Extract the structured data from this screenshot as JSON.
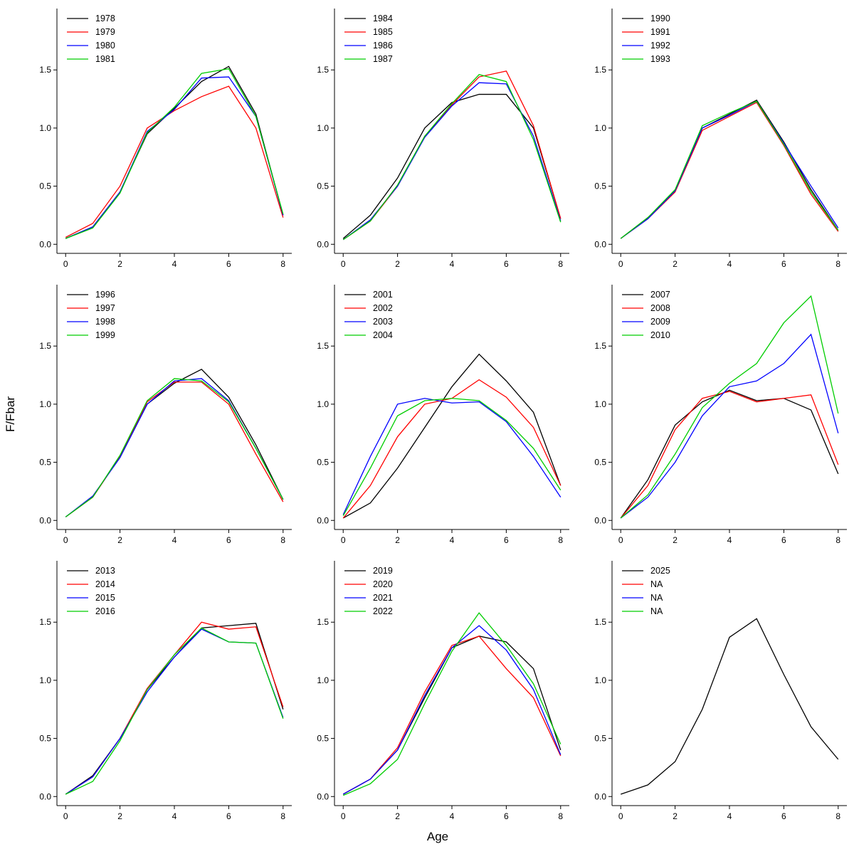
{
  "figure": {
    "xlabel": "Age",
    "ylabel": "F/Fbar"
  },
  "axes": {
    "xlim": [
      0,
      8
    ],
    "ylim": [
      0,
      1.95
    ],
    "x_ticks": [
      0,
      2,
      4,
      6,
      8
    ],
    "x_tick_labels": [
      "0",
      "2",
      "4",
      "6",
      "8"
    ],
    "y_ticks": [
      0,
      0.5,
      1.0,
      1.5
    ],
    "y_tick_labels": [
      "0.0",
      "0.5",
      "1.0",
      "1.5"
    ],
    "grid": false,
    "legend_position": "top-left"
  },
  "colors": {
    "black": "#000000",
    "red": "#ff0000",
    "blue": "#0000ff",
    "green": "#00cd00"
  },
  "chart_data": [
    {
      "type": "line",
      "x": [
        0,
        1,
        2,
        3,
        4,
        5,
        6,
        7,
        8
      ],
      "series": [
        {
          "name": "1978",
          "color": "#000000",
          "values": [
            0.05,
            0.15,
            0.45,
            0.95,
            1.17,
            1.4,
            1.53,
            1.12,
            0.25
          ]
        },
        {
          "name": "1979",
          "color": "#ff0000",
          "values": [
            0.06,
            0.18,
            0.5,
            1.0,
            1.15,
            1.27,
            1.36,
            1.0,
            0.23
          ]
        },
        {
          "name": "1980",
          "color": "#0000ff",
          "values": [
            0.05,
            0.15,
            0.45,
            0.97,
            1.16,
            1.43,
            1.44,
            1.1,
            0.25
          ]
        },
        {
          "name": "1981",
          "color": "#00cd00",
          "values": [
            0.05,
            0.14,
            0.44,
            0.96,
            1.18,
            1.47,
            1.51,
            1.1,
            0.26
          ]
        }
      ]
    },
    {
      "type": "line",
      "x": [
        0,
        1,
        2,
        3,
        4,
        5,
        6,
        7,
        8
      ],
      "series": [
        {
          "name": "1984",
          "color": "#000000",
          "values": [
            0.05,
            0.25,
            0.57,
            1.0,
            1.22,
            1.29,
            1.29,
            1.0,
            0.22
          ]
        },
        {
          "name": "1985",
          "color": "#ff0000",
          "values": [
            0.04,
            0.2,
            0.5,
            0.93,
            1.2,
            1.44,
            1.49,
            1.02,
            0.22
          ]
        },
        {
          "name": "1986",
          "color": "#0000ff",
          "values": [
            0.04,
            0.21,
            0.5,
            0.92,
            1.19,
            1.39,
            1.38,
            0.93,
            0.2
          ]
        },
        {
          "name": "1987",
          "color": "#00cd00",
          "values": [
            0.04,
            0.2,
            0.51,
            0.93,
            1.21,
            1.46,
            1.4,
            0.9,
            0.19
          ]
        }
      ]
    },
    {
      "type": "line",
      "x": [
        0,
        1,
        2,
        3,
        4,
        5,
        6,
        7,
        8
      ],
      "series": [
        {
          "name": "1990",
          "color": "#000000",
          "values": [
            0.05,
            0.23,
            0.46,
            1.0,
            1.12,
            1.24,
            0.88,
            0.47,
            0.12
          ]
        },
        {
          "name": "1991",
          "color": "#ff0000",
          "values": [
            0.05,
            0.22,
            0.45,
            0.98,
            1.1,
            1.22,
            0.85,
            0.43,
            0.11
          ]
        },
        {
          "name": "1992",
          "color": "#0000ff",
          "values": [
            0.05,
            0.22,
            0.46,
            1.0,
            1.11,
            1.23,
            0.87,
            0.5,
            0.14
          ]
        },
        {
          "name": "1993",
          "color": "#00cd00",
          "values": [
            0.05,
            0.23,
            0.47,
            1.02,
            1.13,
            1.23,
            0.86,
            0.45,
            0.12
          ]
        }
      ]
    },
    {
      "type": "line",
      "x": [
        0,
        1,
        2,
        3,
        4,
        5,
        6,
        7,
        8
      ],
      "series": [
        {
          "name": "1996",
          "color": "#000000",
          "values": [
            0.03,
            0.2,
            0.55,
            1.0,
            1.18,
            1.3,
            1.06,
            0.65,
            0.18
          ]
        },
        {
          "name": "1997",
          "color": "#ff0000",
          "values": [
            0.03,
            0.2,
            0.55,
            1.02,
            1.19,
            1.19,
            1.0,
            0.57,
            0.16
          ]
        },
        {
          "name": "1998",
          "color": "#0000ff",
          "values": [
            0.03,
            0.21,
            0.54,
            1.0,
            1.2,
            1.22,
            1.03,
            0.62,
            0.18
          ]
        },
        {
          "name": "1999",
          "color": "#00cd00",
          "values": [
            0.03,
            0.2,
            0.56,
            1.03,
            1.22,
            1.2,
            1.02,
            0.62,
            0.18
          ]
        }
      ]
    },
    {
      "type": "line",
      "x": [
        0,
        1,
        2,
        3,
        4,
        5,
        6,
        7,
        8
      ],
      "series": [
        {
          "name": "2001",
          "color": "#000000",
          "values": [
            0.02,
            0.15,
            0.45,
            0.8,
            1.15,
            1.43,
            1.2,
            0.93,
            0.3
          ]
        },
        {
          "name": "2002",
          "color": "#ff0000",
          "values": [
            0.02,
            0.3,
            0.72,
            1.0,
            1.05,
            1.21,
            1.06,
            0.8,
            0.3
          ]
        },
        {
          "name": "2003",
          "color": "#0000ff",
          "values": [
            0.05,
            0.55,
            1.0,
            1.05,
            1.01,
            1.02,
            0.85,
            0.55,
            0.2
          ]
        },
        {
          "name": "2004",
          "color": "#00cd00",
          "values": [
            0.04,
            0.45,
            0.9,
            1.03,
            1.05,
            1.03,
            0.86,
            0.62,
            0.26
          ]
        }
      ]
    },
    {
      "type": "line",
      "x": [
        0,
        1,
        2,
        3,
        4,
        5,
        6,
        7,
        8
      ],
      "series": [
        {
          "name": "2007",
          "color": "#000000",
          "values": [
            0.02,
            0.35,
            0.82,
            1.02,
            1.12,
            1.03,
            1.05,
            0.95,
            0.4
          ]
        },
        {
          "name": "2008",
          "color": "#ff0000",
          "values": [
            0.02,
            0.3,
            0.78,
            1.05,
            1.11,
            1.02,
            1.05,
            1.08,
            0.48
          ]
        },
        {
          "name": "2009",
          "color": "#0000ff",
          "values": [
            0.02,
            0.2,
            0.5,
            0.9,
            1.15,
            1.2,
            1.35,
            1.6,
            0.75
          ]
        },
        {
          "name": "2010",
          "color": "#00cd00",
          "values": [
            0.02,
            0.22,
            0.57,
            0.97,
            1.18,
            1.35,
            1.7,
            1.93,
            0.92
          ]
        }
      ]
    },
    {
      "type": "line",
      "x": [
        0,
        1,
        2,
        3,
        4,
        5,
        6,
        7,
        8
      ],
      "series": [
        {
          "name": "2013",
          "color": "#000000",
          "values": [
            0.02,
            0.18,
            0.5,
            0.92,
            1.2,
            1.45,
            1.47,
            1.49,
            0.75
          ]
        },
        {
          "name": "2014",
          "color": "#ff0000",
          "values": [
            0.02,
            0.17,
            0.5,
            0.93,
            1.22,
            1.5,
            1.44,
            1.46,
            0.77
          ]
        },
        {
          "name": "2015",
          "color": "#0000ff",
          "values": [
            0.02,
            0.17,
            0.5,
            0.9,
            1.2,
            1.44,
            1.33,
            1.32,
            0.68
          ]
        },
        {
          "name": "2016",
          "color": "#00cd00",
          "values": [
            0.02,
            0.13,
            0.48,
            0.92,
            1.22,
            1.45,
            1.33,
            1.32,
            0.67
          ]
        }
      ]
    },
    {
      "type": "line",
      "x": [
        0,
        1,
        2,
        3,
        4,
        5,
        6,
        7,
        8
      ],
      "series": [
        {
          "name": "2019",
          "color": "#000000",
          "values": [
            0.02,
            0.15,
            0.4,
            0.85,
            1.28,
            1.38,
            1.33,
            1.1,
            0.4
          ]
        },
        {
          "name": "2020",
          "color": "#ff0000",
          "values": [
            0.02,
            0.15,
            0.42,
            0.9,
            1.3,
            1.38,
            1.1,
            0.85,
            0.35
          ]
        },
        {
          "name": "2021",
          "color": "#0000ff",
          "values": [
            0.02,
            0.15,
            0.4,
            0.87,
            1.28,
            1.47,
            1.26,
            0.92,
            0.36
          ]
        },
        {
          "name": "2022",
          "color": "#00cd00",
          "values": [
            0.01,
            0.11,
            0.32,
            0.8,
            1.25,
            1.58,
            1.3,
            0.97,
            0.45
          ]
        }
      ]
    },
    {
      "type": "line",
      "x": [
        0,
        1,
        2,
        3,
        4,
        5,
        6,
        7,
        8
      ],
      "series": [
        {
          "name": "2025",
          "color": "#000000",
          "values": [
            0.02,
            0.1,
            0.3,
            0.75,
            1.37,
            1.53,
            1.05,
            0.6,
            0.32
          ]
        },
        {
          "name": "NA",
          "color": "#ff0000",
          "values": null
        },
        {
          "name": "NA",
          "color": "#0000ff",
          "values": null
        },
        {
          "name": "NA",
          "color": "#00cd00",
          "values": null
        }
      ]
    }
  ]
}
